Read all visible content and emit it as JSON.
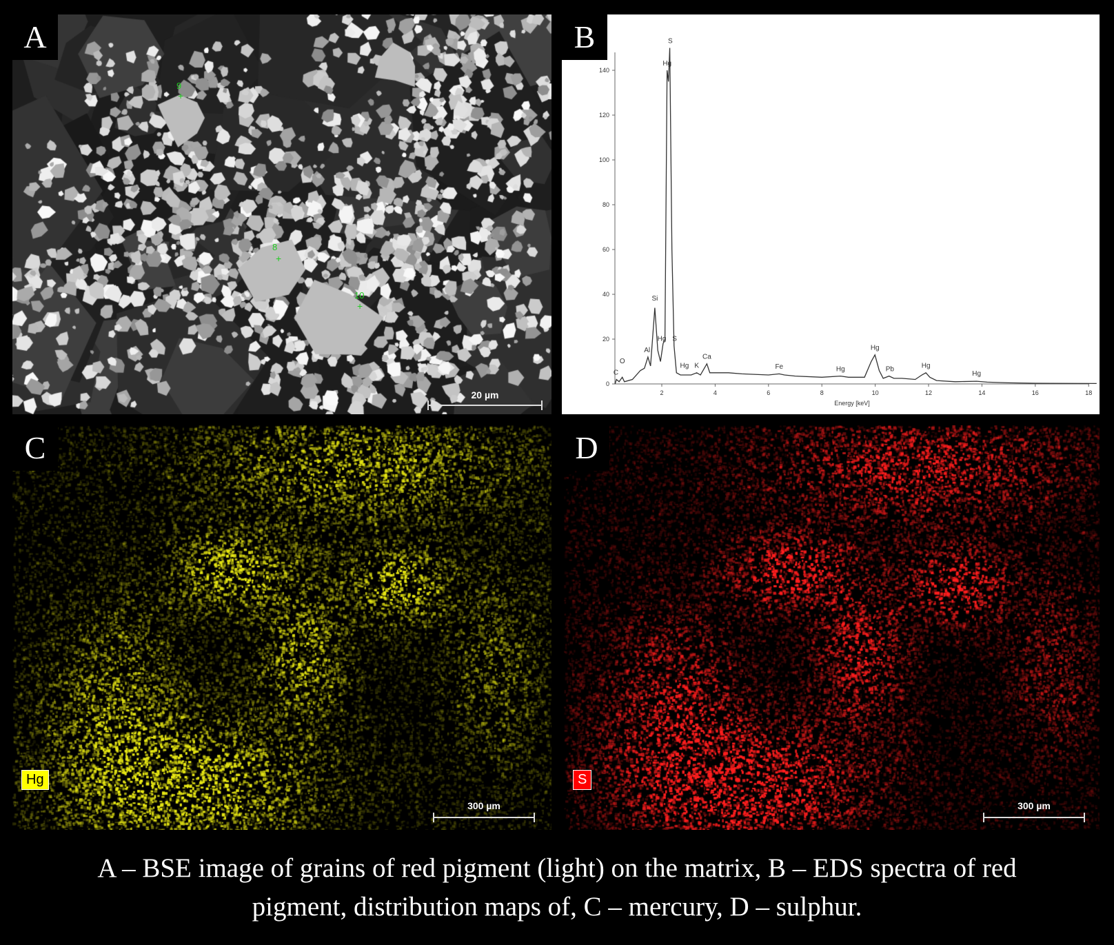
{
  "panels": {
    "a": {
      "label": "A",
      "markers": [
        "9",
        "8",
        "10"
      ],
      "scale_bar": "20 µm"
    },
    "b": {
      "label": "B"
    },
    "c": {
      "label": "C",
      "element": "Hg",
      "element_color": "#ffff00",
      "scale_bar": "300 µm"
    },
    "d": {
      "label": "D",
      "element": "S",
      "element_color": "#ff0000",
      "scale_bar": "300 µm"
    }
  },
  "chart_data": {
    "type": "line",
    "xlabel": "Energy [keV]",
    "ylabel": "",
    "xlim": [
      0.25,
      18.3
    ],
    "ylim": [
      0,
      150
    ],
    "xticks": [
      2,
      4,
      6,
      8,
      10,
      12,
      14,
      16,
      18
    ],
    "yticks": [
      0,
      20,
      40,
      60,
      80,
      100,
      120,
      140
    ],
    "grid": false,
    "series": [
      {
        "color": "#333333",
        "points": [
          [
            0.25,
            0
          ],
          [
            0.3,
            2
          ],
          [
            0.4,
            1
          ],
          [
            0.52,
            3
          ],
          [
            0.6,
            1
          ],
          [
            0.9,
            2
          ],
          [
            1.2,
            6
          ],
          [
            1.35,
            7
          ],
          [
            1.48,
            12
          ],
          [
            1.58,
            8
          ],
          [
            1.74,
            34
          ],
          [
            1.85,
            15
          ],
          [
            1.95,
            10
          ],
          [
            2.05,
            18
          ],
          [
            2.12,
            20
          ],
          [
            2.2,
            140
          ],
          [
            2.25,
            135
          ],
          [
            2.3,
            150
          ],
          [
            2.38,
            60
          ],
          [
            2.46,
            17
          ],
          [
            2.55,
            5
          ],
          [
            2.7,
            4
          ],
          [
            2.9,
            4
          ],
          [
            3.1,
            4
          ],
          [
            3.31,
            5
          ],
          [
            3.45,
            4
          ],
          [
            3.69,
            9
          ],
          [
            3.8,
            5
          ],
          [
            4.0,
            5
          ],
          [
            4.5,
            5
          ],
          [
            5,
            4.5
          ],
          [
            6,
            4
          ],
          [
            6.4,
            4.5
          ],
          [
            6.6,
            4
          ],
          [
            7,
            3.5
          ],
          [
            8,
            3
          ],
          [
            8.7,
            3.5
          ],
          [
            9,
            3
          ],
          [
            9.6,
            3
          ],
          [
            9.85,
            10
          ],
          [
            9.99,
            13
          ],
          [
            10.15,
            6
          ],
          [
            10.3,
            2.5
          ],
          [
            10.52,
            3.5
          ],
          [
            10.7,
            2.5
          ],
          [
            11,
            2.5
          ],
          [
            11.5,
            2
          ],
          [
            11.75,
            4
          ],
          [
            11.9,
            5
          ],
          [
            12.05,
            3
          ],
          [
            12.3,
            1.5
          ],
          [
            13,
            1
          ],
          [
            13.8,
            1.2
          ],
          [
            14.2,
            0.8
          ],
          [
            15,
            0.5
          ],
          [
            16,
            0.3
          ],
          [
            18.3,
            0.2
          ]
        ]
      }
    ],
    "annotations": [
      {
        "text": "C",
        "x": 0.28,
        "y": 3
      },
      {
        "text": "O",
        "x": 0.52,
        "y": 8
      },
      {
        "text": "Al",
        "x": 1.45,
        "y": 13
      },
      {
        "text": "Si",
        "x": 1.74,
        "y": 36
      },
      {
        "text": "Hg",
        "x": 2.0,
        "y": 18
      },
      {
        "text": "Hg",
        "x": 2.2,
        "y": 141
      },
      {
        "text": "S",
        "x": 2.32,
        "y": 151
      },
      {
        "text": "S",
        "x": 2.48,
        "y": 18
      },
      {
        "text": "Hg",
        "x": 2.85,
        "y": 6
      },
      {
        "text": "K",
        "x": 3.31,
        "y": 6
      },
      {
        "text": "Ca",
        "x": 3.69,
        "y": 10
      },
      {
        "text": "Fe",
        "x": 6.4,
        "y": 5.5
      },
      {
        "text": "Hg",
        "x": 8.7,
        "y": 4.5
      },
      {
        "text": "Hg",
        "x": 9.99,
        "y": 14
      },
      {
        "text": "Pb",
        "x": 10.55,
        "y": 4.5
      },
      {
        "text": "Hg",
        "x": 11.9,
        "y": 6
      },
      {
        "text": "Hg",
        "x": 13.8,
        "y": 2.5
      }
    ]
  },
  "caption": {
    "line1": "A – BSE image of grains of red pigment (light) on the matrix, B – EDS spectra of red",
    "line2": "pigment, distribution maps of, C – mercury, D – sulphur."
  }
}
